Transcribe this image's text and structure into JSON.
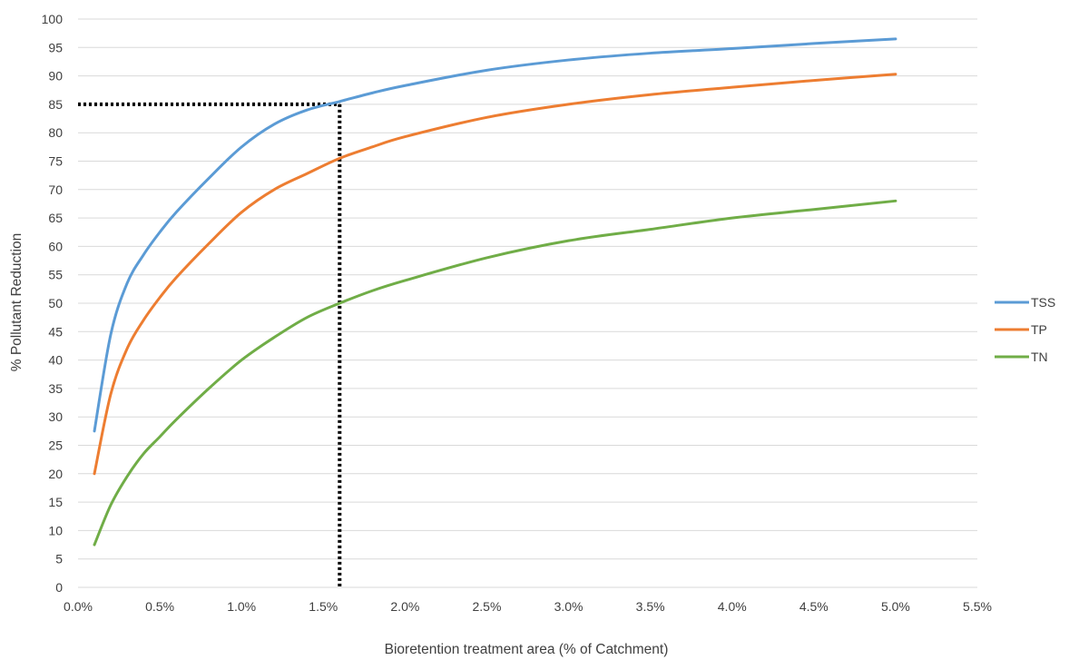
{
  "chart_data": {
    "type": "line",
    "title": "",
    "xlabel": "Bioretention treatment area (% of Catchment)",
    "ylabel": "% Pollutant Reduction",
    "xlim": [
      0.0,
      5.5
    ],
    "ylim": [
      0,
      100
    ],
    "x_ticks": [
      0.0,
      0.5,
      1.0,
      1.5,
      2.0,
      2.5,
      3.0,
      3.5,
      4.0,
      4.5,
      5.0,
      5.5
    ],
    "x_tick_labels": [
      "0.0%",
      "0.5%",
      "1.0%",
      "1.5%",
      "2.0%",
      "2.5%",
      "3.0%",
      "3.5%",
      "4.0%",
      "4.5%",
      "5.0%",
      "5.5%"
    ],
    "y_ticks": [
      0,
      5,
      10,
      15,
      20,
      25,
      30,
      35,
      40,
      45,
      50,
      55,
      60,
      65,
      70,
      75,
      80,
      85,
      90,
      95,
      100
    ],
    "grid": "horizontal",
    "legend_position": "right",
    "series": [
      {
        "name": "TSS",
        "color": "#5B9BD5",
        "x": [
          0.1,
          0.2,
          0.3,
          0.4,
          0.5,
          0.6,
          0.8,
          1.0,
          1.2,
          1.4,
          1.6,
          1.8,
          2.0,
          2.5,
          3.0,
          3.5,
          4.0,
          4.5,
          5.0
        ],
        "y": [
          27.5,
          44.5,
          53.5,
          58.5,
          62.5,
          66.0,
          72.0,
          77.5,
          81.5,
          84.0,
          85.5,
          87.0,
          88.3,
          91.0,
          92.8,
          94.0,
          94.8,
          95.7,
          96.5
        ]
      },
      {
        "name": "TP",
        "color": "#ED7D31",
        "x": [
          0.1,
          0.2,
          0.3,
          0.4,
          0.5,
          0.6,
          0.8,
          1.0,
          1.2,
          1.4,
          1.6,
          1.8,
          2.0,
          2.5,
          3.0,
          3.5,
          4.0,
          4.5,
          5.0
        ],
        "y": [
          20.0,
          34.0,
          42.0,
          47.0,
          51.0,
          54.5,
          60.5,
          66.0,
          70.0,
          72.8,
          75.5,
          77.5,
          79.3,
          82.7,
          85.0,
          86.7,
          88.0,
          89.2,
          90.3
        ]
      },
      {
        "name": "TN",
        "color": "#70AD47",
        "x": [
          0.1,
          0.2,
          0.3,
          0.4,
          0.5,
          0.6,
          0.8,
          1.0,
          1.2,
          1.4,
          1.6,
          1.8,
          2.0,
          2.5,
          3.0,
          3.5,
          4.0,
          4.5,
          5.0
        ],
        "y": [
          7.5,
          14.5,
          19.5,
          23.5,
          26.5,
          29.5,
          35.0,
          40.0,
          44.0,
          47.5,
          50.0,
          52.2,
          54.0,
          58.0,
          61.0,
          63.0,
          65.0,
          66.5,
          68.0
        ]
      }
    ],
    "annotations": [
      {
        "type": "dotted-guide",
        "color": "#000000",
        "x": 1.6,
        "y": 85
      }
    ]
  }
}
